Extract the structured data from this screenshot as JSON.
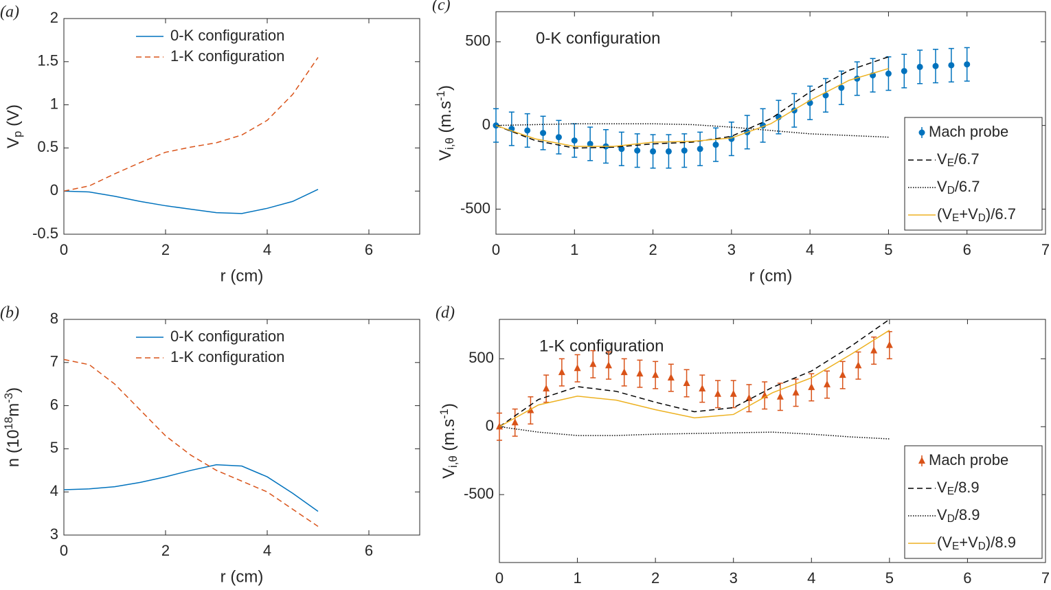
{
  "chart_data": [
    {
      "type": "line",
      "panel_label": "(a)",
      "xlabel": "r (cm)",
      "ylabel": [
        {
          "text": "V"
        },
        {
          "text": "p",
          "shift": "sub"
        },
        {
          "text": " (V)"
        }
      ],
      "xlim": [
        0,
        7
      ],
      "ylim": [
        -0.5,
        2
      ],
      "xticks": [
        0,
        2,
        4,
        6
      ],
      "yticks": [
        -0.5,
        0,
        0.5,
        1,
        1.5,
        2
      ],
      "legend": "upper center",
      "legend_box": false,
      "series": [
        {
          "name": "0-K configuration",
          "color": "#0072BD",
          "style": "solid",
          "x": [
            0,
            0.5,
            1,
            1.5,
            2,
            2.5,
            3,
            3.5,
            4,
            4.5,
            5
          ],
          "values": [
            0,
            -0.01,
            -0.06,
            -0.12,
            -0.17,
            -0.21,
            -0.25,
            -0.26,
            -0.2,
            -0.12,
            0.02
          ]
        },
        {
          "name": "1-K configuration",
          "color": "#D95319",
          "style": "dashed",
          "x": [
            0,
            0.5,
            1,
            1.5,
            2,
            2.5,
            3,
            3.5,
            4,
            4.5,
            5
          ],
          "values": [
            0,
            0.06,
            0.2,
            0.33,
            0.45,
            0.51,
            0.56,
            0.65,
            0.82,
            1.12,
            1.55
          ]
        }
      ]
    },
    {
      "type": "line",
      "panel_label": "(b)",
      "xlabel": "r (cm)",
      "ylabel": [
        {
          "text": "n (10"
        },
        {
          "text": "18",
          "shift": "sup"
        },
        {
          "text": "m"
        },
        {
          "text": "-3",
          "shift": "sup"
        },
        {
          "text": ")"
        }
      ],
      "xlim": [
        0,
        7
      ],
      "ylim": [
        3,
        8
      ],
      "xticks": [
        0,
        2,
        4,
        6
      ],
      "yticks": [
        3,
        4,
        5,
        6,
        7,
        8
      ],
      "legend": "upper center",
      "legend_box": false,
      "series": [
        {
          "name": "0-K configuration",
          "color": "#0072BD",
          "style": "solid",
          "x": [
            0,
            0.5,
            1,
            1.5,
            2,
            2.5,
            3,
            3.5,
            4,
            4.5,
            5
          ],
          "values": [
            4.05,
            4.07,
            4.12,
            4.22,
            4.35,
            4.5,
            4.63,
            4.6,
            4.35,
            3.97,
            3.55
          ]
        },
        {
          "name": "1-K configuration",
          "color": "#D95319",
          "style": "dashed",
          "x": [
            0,
            0.5,
            1,
            1.5,
            2,
            2.5,
            3,
            3.5,
            4,
            4.5,
            5
          ],
          "values": [
            7.07,
            6.95,
            6.5,
            5.9,
            5.3,
            4.85,
            4.5,
            4.25,
            4.0,
            3.6,
            3.2
          ]
        }
      ]
    },
    {
      "type": "line",
      "panel_label": "(c)",
      "xlabel": "r (cm)",
      "annotation": "0-K configuration",
      "ylabel": [
        {
          "text": "V"
        },
        {
          "text": "i,θ",
          "shift": "sub"
        },
        {
          "text": " (m.s"
        },
        {
          "text": "-1",
          "shift": "sup"
        },
        {
          "text": ")"
        }
      ],
      "xlim": [
        0,
        7
      ],
      "ylim": [
        -650,
        680
      ],
      "xticks": [
        0,
        1,
        2,
        3,
        4,
        5,
        6,
        7
      ],
      "yticks": [
        -500,
        0,
        500
      ],
      "legend": "right",
      "legend_box": true,
      "series": [
        {
          "name": "Mach probe",
          "color": "#0072BD",
          "style": "errorbar",
          "marker": "circle",
          "x": [
            0,
            0.2,
            0.4,
            0.6,
            0.8,
            1,
            1.2,
            1.4,
            1.6,
            1.8,
            2,
            2.2,
            2.4,
            2.6,
            2.8,
            3,
            3.2,
            3.4,
            3.6,
            3.8,
            4,
            4.2,
            4.4,
            4.6,
            4.8,
            5,
            5.2,
            5.4,
            5.6,
            5.8,
            6
          ],
          "values": [
            0,
            -20,
            -30,
            -45,
            -70,
            -90,
            -110,
            -125,
            -140,
            -150,
            -155,
            -155,
            -150,
            -140,
            -115,
            -80,
            -40,
            0,
            50,
            90,
            135,
            180,
            225,
            280,
            300,
            310,
            325,
            350,
            355,
            360,
            365
          ],
          "errors": [
            100,
            100,
            100,
            100,
            100,
            100,
            100,
            100,
            100,
            100,
            100,
            100,
            100,
            100,
            100,
            100,
            100,
            100,
            100,
            100,
            100,
            100,
            100,
            100,
            100,
            100,
            100,
            100,
            100,
            100,
            100
          ]
        },
        {
          "name": [
            {
              "text": "V"
            },
            {
              "text": "E",
              "shift": "sub"
            },
            {
              "text": "/6.7"
            }
          ],
          "color": "#000000",
          "style": "dashed",
          "x": [
            0,
            0.5,
            1,
            1.5,
            2,
            2.5,
            3,
            3.5,
            4,
            4.5,
            5
          ],
          "values": [
            0,
            -90,
            -135,
            -130,
            -110,
            -100,
            -65,
            40,
            200,
            330,
            410
          ]
        },
        {
          "name": [
            {
              "text": "V"
            },
            {
              "text": "D",
              "shift": "sub"
            },
            {
              "text": "/6.7"
            }
          ],
          "color": "#000000",
          "style": "dotted",
          "x": [
            0,
            1,
            2,
            2.5,
            3,
            3.5,
            4,
            4.5,
            5
          ],
          "values": [
            0,
            10,
            10,
            5,
            -10,
            -30,
            -50,
            -60,
            -70
          ]
        },
        {
          "name": [
            {
              "text": "(V"
            },
            {
              "text": "E",
              "shift": "sub"
            },
            {
              "text": "+V"
            },
            {
              "text": "D",
              "shift": "sub"
            },
            {
              "text": ")/6.7"
            }
          ],
          "color": "#EDB120",
          "style": "solid",
          "x": [
            0,
            0.5,
            1,
            1.5,
            2,
            2.5,
            3,
            3.5,
            4,
            4.5,
            5
          ],
          "values": [
            0,
            -80,
            -125,
            -125,
            -100,
            -95,
            -75,
            10,
            150,
            270,
            340
          ]
        }
      ]
    },
    {
      "type": "line",
      "panel_label": "(d)",
      "xlabel": "r (cm)",
      "annotation": "1-K configuration",
      "ylabel": [
        {
          "text": "V"
        },
        {
          "text": "i,θ",
          "shift": "sub"
        },
        {
          "text": " (m.s"
        },
        {
          "text": "-1",
          "shift": "sup"
        },
        {
          "text": ")"
        }
      ],
      "xlim": [
        0,
        7
      ],
      "ylim": [
        -1000,
        790
      ],
      "xticks": [
        0,
        1,
        2,
        3,
        4,
        5,
        6,
        7
      ],
      "yticks": [
        -500,
        0,
        500
      ],
      "legend": "right",
      "legend_box": true,
      "series": [
        {
          "name": "Mach probe",
          "color": "#D95319",
          "style": "errorbar",
          "marker": "triangle",
          "x": [
            0,
            0.2,
            0.4,
            0.6,
            0.8,
            1,
            1.2,
            1.4,
            1.6,
            1.8,
            2,
            2.2,
            2.4,
            2.6,
            2.8,
            3,
            3.2,
            3.4,
            3.6,
            3.8,
            4,
            4.2,
            4.4,
            4.6,
            4.8,
            5
          ],
          "values": [
            0,
            30,
            120,
            280,
            400,
            430,
            460,
            450,
            400,
            390,
            380,
            360,
            320,
            280,
            240,
            240,
            210,
            230,
            220,
            250,
            290,
            310,
            380,
            450,
            560,
            600
          ],
          "errors": [
            100,
            100,
            100,
            100,
            100,
            100,
            100,
            100,
            100,
            100,
            100,
            100,
            100,
            100,
            100,
            100,
            100,
            100,
            100,
            100,
            100,
            100,
            100,
            100,
            100,
            100
          ]
        },
        {
          "name": [
            {
              "text": "V"
            },
            {
              "text": "E",
              "shift": "sub"
            },
            {
              "text": "/8.9"
            }
          ],
          "color": "#000000",
          "style": "dashed",
          "x": [
            0,
            0.5,
            1,
            1.5,
            2,
            2.5,
            3,
            3.5,
            4,
            4.5,
            5
          ],
          "values": [
            0,
            200,
            295,
            260,
            180,
            110,
            140,
            290,
            410,
            590,
            790
          ]
        },
        {
          "name": [
            {
              "text": "V"
            },
            {
              "text": "D",
              "shift": "sub"
            },
            {
              "text": "/8.9"
            }
          ],
          "color": "#000000",
          "style": "dotted",
          "x": [
            0,
            0.5,
            1,
            1.5,
            2,
            2.5,
            3,
            3.5,
            4,
            4.5,
            5
          ],
          "values": [
            0,
            -40,
            -65,
            -65,
            -55,
            -50,
            -45,
            -40,
            -55,
            -75,
            -90
          ]
        },
        {
          "name": [
            {
              "text": "(V"
            },
            {
              "text": "E",
              "shift": "sub"
            },
            {
              "text": "+V"
            },
            {
              "text": "D",
              "shift": "sub"
            },
            {
              "text": ")/8.9"
            }
          ],
          "color": "#EDB120",
          "style": "solid",
          "x": [
            0,
            0.5,
            1,
            1.5,
            2,
            2.5,
            3,
            3.5,
            4,
            4.5,
            5
          ],
          "values": [
            0,
            160,
            225,
            195,
            125,
            65,
            90,
            250,
            360,
            530,
            710
          ]
        }
      ]
    }
  ]
}
